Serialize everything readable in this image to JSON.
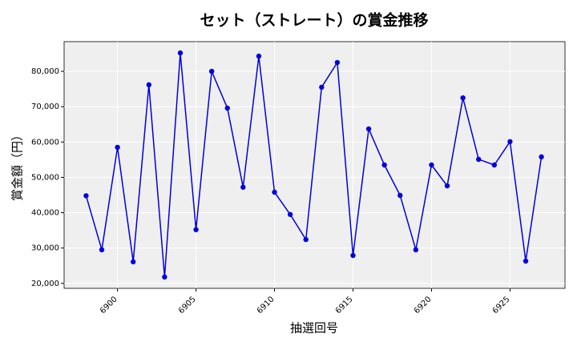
{
  "chart_data": {
    "type": "line",
    "title": "セット（ストレート）の賞金推移",
    "x_label": "抽選回号",
    "y_label": "賞金額（円）",
    "x": [
      6898,
      6899,
      6900,
      6901,
      6902,
      6903,
      6904,
      6905,
      6906,
      6907,
      6908,
      6909,
      6910,
      6911,
      6912,
      6913,
      6914,
      6915,
      6916,
      6917,
      6918,
      6919,
      6920,
      6921,
      6922,
      6923,
      6924,
      6925,
      6926,
      6927
    ],
    "series": [
      {
        "name": "賞金",
        "color": "#0000dd",
        "values": [
          44800,
          29500,
          58500,
          26100,
          76200,
          21800,
          85200,
          35200,
          80000,
          69600,
          47200,
          84300,
          45800,
          39500,
          32400,
          75500,
          82500,
          27900,
          63700,
          53500,
          44900,
          29500,
          53500,
          47600,
          72500,
          55100,
          53500,
          60100,
          26300,
          55800
        ]
      }
    ],
    "xlim": [
      6896.6,
      6928.5
    ],
    "xticks": [
      6900,
      6905,
      6910,
      6915,
      6920,
      6925
    ],
    "ylim": [
      18600,
      88400
    ],
    "yticks": [
      {
        "value": 20000,
        "label": "20,000"
      },
      {
        "value": 30000,
        "label": "30,000"
      },
      {
        "value": 40000,
        "label": "40,000"
      },
      {
        "value": 50000,
        "label": "50,000"
      },
      {
        "value": 60000,
        "label": "60,000"
      },
      {
        "value": 70000,
        "label": "70,000"
      },
      {
        "value": 80000,
        "label": "80,000"
      }
    ],
    "grid": true
  }
}
